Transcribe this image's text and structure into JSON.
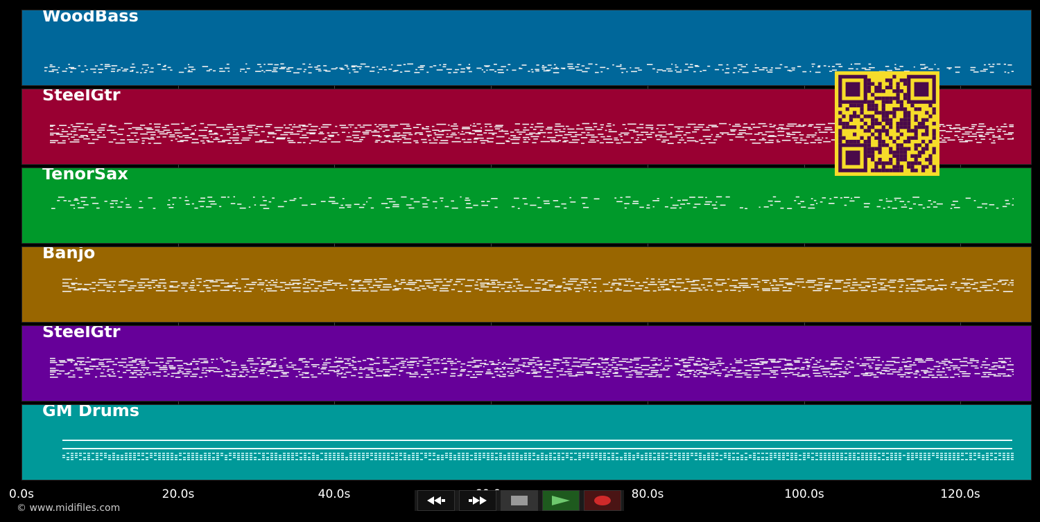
{
  "tracks": [
    {
      "name": "WoodBass",
      "color": "#00679a"
    },
    {
      "name": "SteelGtr",
      "color": "#990032"
    },
    {
      "name": "TenorSax",
      "color": "#00992a"
    },
    {
      "name": "Banjo",
      "color": "#996600"
    },
    {
      "name": "SteelGtr",
      "color": "#660099"
    },
    {
      "name": "GM Drums",
      "color": "#009999"
    }
  ],
  "timeline": {
    "ticks": [
      "0.0s",
      "20.0s",
      "40.0s",
      "60.0s",
      "80.0s",
      "100.0s",
      "120.0s"
    ]
  },
  "credit": "© www.midifiles.com",
  "controls": {
    "rewind": "rewind-icon",
    "forward": "fast-forward-icon",
    "stop": "stop-icon",
    "play": "play-icon",
    "record": "record-icon"
  },
  "qr_color": "#f6dc2a"
}
